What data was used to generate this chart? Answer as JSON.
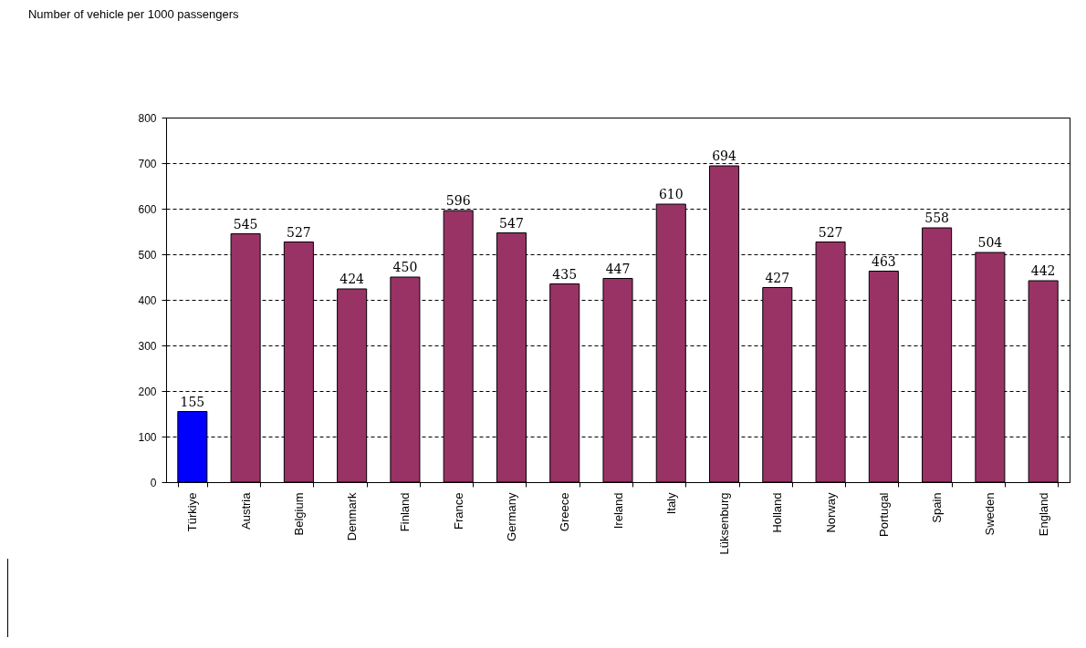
{
  "chart_data": {
    "type": "bar",
    "title": "Number of vehicle per 1000 passengers",
    "categories": [
      "Türkiye",
      "Austria",
      "Belgium",
      "Denmark",
      "Finland",
      "France",
      "Germany",
      "Greece",
      "Ireland",
      "Italy",
      "Lüksenburg",
      "Holland",
      "Norway",
      "Portugal",
      "Spain",
      "Sweden",
      "England"
    ],
    "values": [
      155,
      545,
      527,
      424,
      450,
      596,
      547,
      435,
      447,
      610,
      694,
      427,
      527,
      463,
      558,
      504,
      442
    ],
    "colors": [
      "#0000ff",
      "#993366",
      "#993366",
      "#993366",
      "#993366",
      "#993366",
      "#993366",
      "#993366",
      "#993366",
      "#993366",
      "#993366",
      "#993366",
      "#993366",
      "#993366",
      "#993366",
      "#993366",
      "#993366"
    ],
    "ylim": [
      0,
      800
    ],
    "yticks": [
      0,
      100,
      200,
      300,
      400,
      500,
      600,
      700,
      800
    ],
    "grid": "y",
    "data_labels": true
  }
}
